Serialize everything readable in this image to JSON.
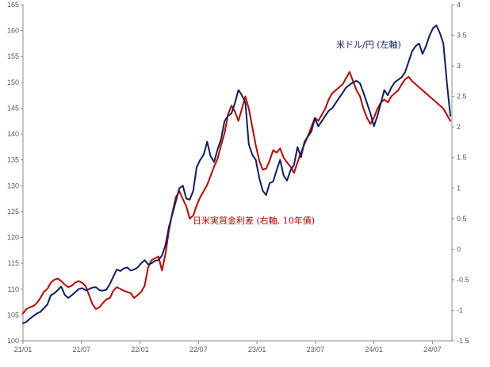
{
  "chart_data": {
    "type": "line",
    "x_start": "21/01",
    "x_end": "24/09",
    "x_ticks": [
      "21/01",
      "21/07",
      "22/01",
      "22/07",
      "23/01",
      "23/07",
      "24/01",
      "24/07"
    ],
    "y_left": {
      "min": 100,
      "max": 165,
      "step": 5
    },
    "y_right": {
      "min": -1.5,
      "max": 4,
      "step": 0.5
    },
    "grid": false,
    "annotations": [
      {
        "text": "米ドル/円 (左軸)",
        "series": "usdjpy",
        "color": "#0d1f5c"
      },
      {
        "text": "日米実質金利差 (右軸, 10年債)",
        "series": "rate_diff",
        "color": "#c00000"
      }
    ],
    "series": [
      {
        "id": "usdjpy",
        "axis": "left",
        "color": "#0d1f5c",
        "values": [
          103.4,
          103.7,
          104.3,
          104.8,
          105.3,
          105.6,
          106.3,
          107.0,
          108.8,
          109.2,
          109.8,
          110.5,
          108.9,
          108.3,
          108.8,
          109.4,
          110.0,
          110.2,
          109.8,
          110.0,
          110.3,
          110.4,
          109.8,
          109.7,
          109.9,
          111.0,
          112.4,
          113.8,
          113.5,
          114.0,
          114.2,
          113.6,
          113.8,
          114.2,
          115.0,
          115.6,
          114.8,
          115.0,
          115.5,
          115.6,
          116.5,
          118.5,
          122.0,
          124.5,
          127.0,
          129.5,
          130.0,
          127.5,
          127.3,
          129.0,
          133.6,
          135.0,
          136.0,
          138.5,
          135.7,
          134.6,
          137.0,
          139.0,
          142.5,
          143.5,
          144.0,
          146.0,
          148.5,
          147.5,
          146.0,
          138.0,
          136.0,
          135.0,
          131.5,
          129.0,
          128.2,
          130.5,
          130.8,
          133.0,
          135.0,
          132.0,
          131.0,
          133.0,
          134.0,
          137.5,
          135.5,
          138.5,
          139.5,
          140.5,
          143.0,
          141.5,
          142.5,
          143.5,
          144.5,
          145.0,
          146.0,
          147.0,
          148.0,
          149.0,
          149.5,
          150.0,
          150.3,
          149.8,
          148.0,
          146.0,
          144.0,
          141.5,
          143.5,
          146.0,
          148.5,
          147.5,
          149.0,
          150.0,
          150.5,
          151.0,
          152.0,
          154.0,
          156.0,
          157.0,
          157.5,
          155.5,
          157.0,
          159.0,
          160.5,
          161.0,
          159.5,
          157.5,
          150.0,
          143.5
        ]
      },
      {
        "id": "rate_diff",
        "axis": "right",
        "color": "#c00000",
        "values": [
          -1.05,
          -0.98,
          -0.95,
          -0.93,
          -0.88,
          -0.8,
          -0.7,
          -0.65,
          -0.55,
          -0.5,
          -0.48,
          -0.52,
          -0.58,
          -0.62,
          -0.6,
          -0.55,
          -0.52,
          -0.55,
          -0.6,
          -0.75,
          -0.9,
          -0.98,
          -0.95,
          -0.88,
          -0.82,
          -0.8,
          -0.68,
          -0.62,
          -0.65,
          -0.68,
          -0.7,
          -0.72,
          -0.8,
          -0.75,
          -0.7,
          -0.6,
          -0.3,
          -0.18,
          -0.15,
          -0.12,
          -0.35,
          -0.08,
          0.3,
          0.6,
          0.85,
          0.95,
          0.82,
          0.7,
          0.5,
          0.55,
          0.72,
          0.85,
          0.95,
          1.05,
          1.2,
          1.35,
          1.48,
          1.7,
          1.9,
          2.2,
          2.35,
          2.25,
          2.1,
          2.3,
          2.5,
          2.3,
          2.0,
          1.7,
          1.45,
          1.3,
          1.32,
          1.45,
          1.62,
          1.58,
          1.65,
          1.5,
          1.42,
          1.35,
          1.25,
          1.42,
          1.58,
          1.72,
          1.85,
          2.0,
          2.15,
          2.1,
          2.2,
          2.3,
          2.45,
          2.55,
          2.6,
          2.65,
          2.7,
          2.8,
          2.9,
          2.75,
          2.6,
          2.5,
          2.3,
          2.15,
          2.05,
          2.15,
          2.3,
          2.4,
          2.45,
          2.4,
          2.5,
          2.55,
          2.6,
          2.7,
          2.78,
          2.82,
          2.75,
          2.7,
          2.65,
          2.6,
          2.55,
          2.5,
          2.45,
          2.4,
          2.35,
          2.3,
          2.2,
          2.1
        ]
      }
    ]
  }
}
